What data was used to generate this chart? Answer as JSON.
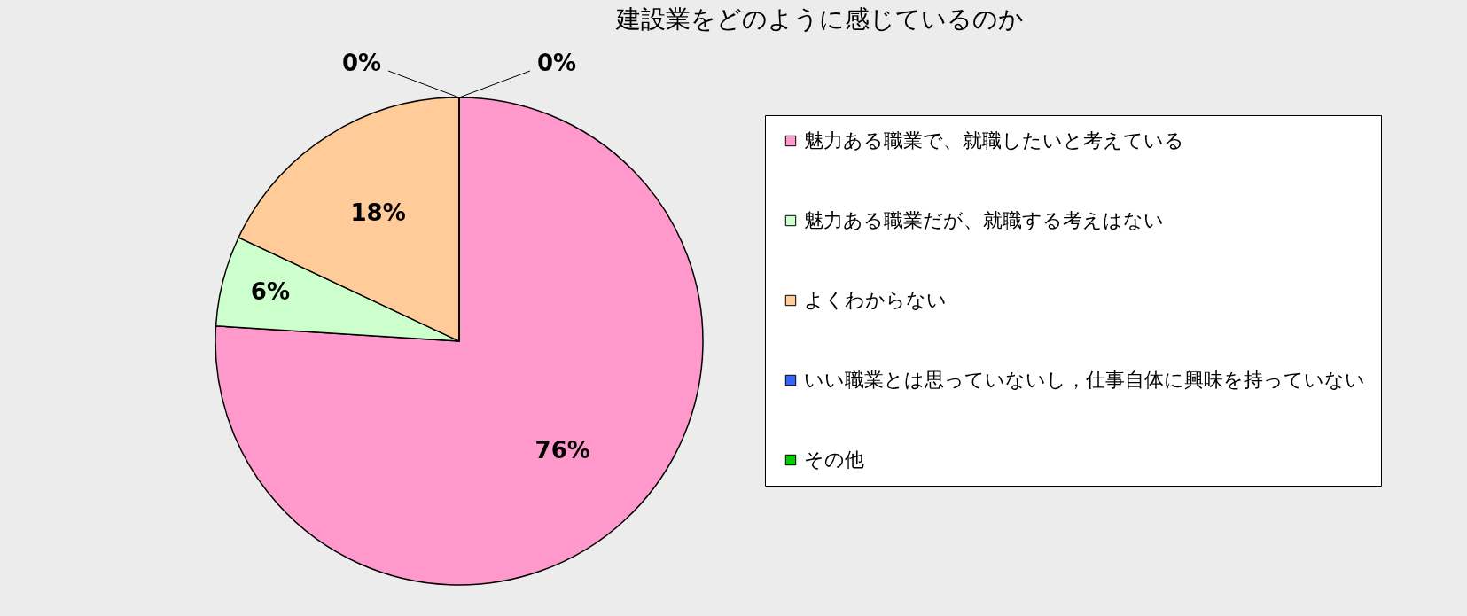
{
  "chart_data": {
    "type": "pie",
    "title": "建設業をどのように感じているのか",
    "categories": [
      "魅力ある職業で、就職したいと考えている",
      "魅力ある職業だが、就職する考えはない",
      "よくわからない",
      "いい職業とは思っていないし，仕事自体に興味を持っていない",
      "その他"
    ],
    "values": [
      76,
      6,
      18,
      0,
      0
    ],
    "colors": [
      "#ff99cc",
      "#ccffcc",
      "#ffcc99",
      "#3366ff",
      "#00cc00"
    ],
    "value_labels": [
      "76%",
      "6%",
      "18%",
      "0%",
      "0%"
    ],
    "legend": "right"
  }
}
